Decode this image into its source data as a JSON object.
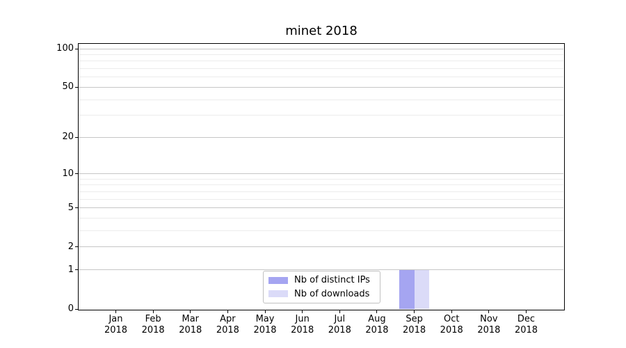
{
  "chart_data": {
    "type": "bar",
    "title": "minet 2018",
    "categories": [
      "Jan",
      "Feb",
      "Mar",
      "Apr",
      "May",
      "Jun",
      "Jul",
      "Aug",
      "Sep",
      "Oct",
      "Nov",
      "Dec"
    ],
    "year_label": "2018",
    "series": [
      {
        "name": "Nb of distinct IPs",
        "color": "#a5a5f1",
        "values": [
          0,
          0,
          0,
          0,
          0,
          0,
          0,
          0,
          1,
          0,
          0,
          0
        ]
      },
      {
        "name": "Nb of downloads",
        "color": "#dbdbf8",
        "values": [
          0,
          0,
          0,
          0,
          0,
          0,
          0,
          0,
          1,
          0,
          0,
          0
        ]
      }
    ],
    "xlabel": "",
    "ylabel": "",
    "yscale": "log1p",
    "ylim": [
      0,
      110
    ],
    "y_major_ticks": [
      0,
      1,
      2,
      5,
      10,
      20,
      50,
      100
    ],
    "y_minor_ticks": [
      3,
      4,
      6,
      7,
      8,
      9,
      30,
      40,
      60,
      70,
      80,
      90
    ],
    "grid": true,
    "legend_position": "lower center"
  },
  "colors": {
    "major_grid": "#c6c6c6",
    "minor_grid": "#ececec",
    "axis": "#000000",
    "background": "#ffffff"
  }
}
